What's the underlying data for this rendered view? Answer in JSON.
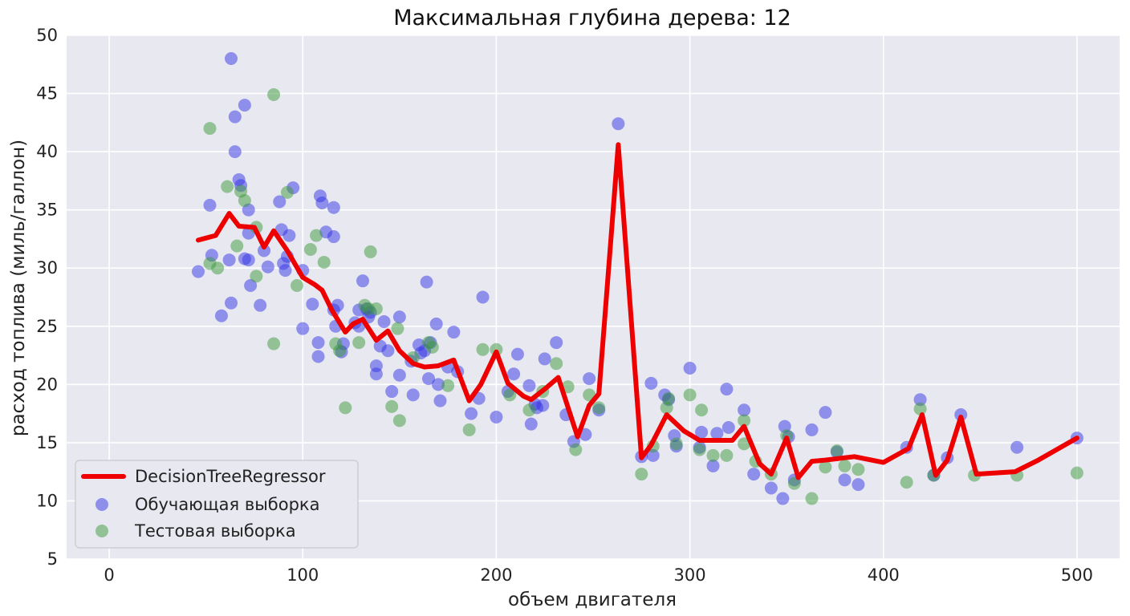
{
  "chart_data": {
    "type": "scatter",
    "title": "Максимальная глубина дерева: 12",
    "xlabel": "объем двигателя",
    "ylabel": "расход топлива (миль/галлон)",
    "xlim": [
      -22,
      522
    ],
    "ylim": [
      5,
      50
    ],
    "xticks": [
      0,
      100,
      200,
      300,
      400,
      500
    ],
    "yticks": [
      5,
      10,
      15,
      20,
      25,
      30,
      35,
      40,
      45,
      50
    ],
    "grid": true,
    "legend_position": "lower-left",
    "colors": {
      "background": "#e8e8f0",
      "grid": "#ffffff",
      "line": "#ee0000",
      "train": "#3333e6",
      "test": "#3c9a3c"
    },
    "series": [
      {
        "name": "DecisionTreeRegressor",
        "kind": "line",
        "points": [
          [
            46,
            32.4
          ],
          [
            55,
            32.8
          ],
          [
            62,
            34.7
          ],
          [
            67,
            33.6
          ],
          [
            75,
            33.5
          ],
          [
            80,
            31.8
          ],
          [
            85,
            33.2
          ],
          [
            92,
            31.5
          ],
          [
            100,
            29.2
          ],
          [
            106,
            28.6
          ],
          [
            110,
            28.1
          ],
          [
            115,
            26.4
          ],
          [
            122,
            24.5
          ],
          [
            126,
            25.2
          ],
          [
            131,
            25.6
          ],
          [
            138,
            23.8
          ],
          [
            144,
            24.6
          ],
          [
            150,
            22.9
          ],
          [
            157,
            21.8
          ],
          [
            163,
            21.5
          ],
          [
            170,
            21.6
          ],
          [
            178,
            22.1
          ],
          [
            186,
            18.6
          ],
          [
            192,
            20.0
          ],
          [
            200,
            22.8
          ],
          [
            206,
            20.1
          ],
          [
            214,
            19.0
          ],
          [
            218,
            18.7
          ],
          [
            225,
            19.6
          ],
          [
            232,
            20.6
          ],
          [
            242,
            15.5
          ],
          [
            248,
            18.2
          ],
          [
            253,
            19.2
          ],
          [
            263,
            40.6
          ],
          [
            275,
            13.7
          ],
          [
            280,
            14.8
          ],
          [
            288,
            17.4
          ],
          [
            297,
            16.0
          ],
          [
            305,
            15.2
          ],
          [
            318,
            15.2
          ],
          [
            322,
            15.2
          ],
          [
            328,
            16.4
          ],
          [
            336,
            13.2
          ],
          [
            342,
            12.3
          ],
          [
            350,
            15.4
          ],
          [
            356,
            12.0
          ],
          [
            363,
            13.4
          ],
          [
            370,
            13.5
          ],
          [
            385,
            13.8
          ],
          [
            400,
            13.3
          ],
          [
            413,
            14.5
          ],
          [
            420,
            17.4
          ],
          [
            427,
            12.2
          ],
          [
            433,
            13.5
          ],
          [
            440,
            17.2
          ],
          [
            448,
            12.3
          ],
          [
            468,
            12.5
          ],
          [
            480,
            13.5
          ],
          [
            500,
            15.4
          ]
        ]
      },
      {
        "name": "Обучающая выборка",
        "kind": "scatter",
        "points": [
          [
            46,
            29.7
          ],
          [
            52,
            35.4
          ],
          [
            53,
            31.1
          ],
          [
            58,
            25.9
          ],
          [
            62,
            30.7
          ],
          [
            63,
            27.0
          ],
          [
            63,
            48.0
          ],
          [
            65,
            43.0
          ],
          [
            65,
            40.0
          ],
          [
            67,
            37.6
          ],
          [
            68,
            37.1
          ],
          [
            70,
            30.8
          ],
          [
            70,
            44.0
          ],
          [
            72,
            33.0
          ],
          [
            72,
            35.0
          ],
          [
            72,
            30.7
          ],
          [
            73,
            28.5
          ],
          [
            78,
            26.8
          ],
          [
            80,
            31.5
          ],
          [
            82,
            30.1
          ],
          [
            88,
            35.7
          ],
          [
            89,
            33.3
          ],
          [
            90,
            30.4
          ],
          [
            91,
            29.8
          ],
          [
            92,
            31.0
          ],
          [
            93,
            32.8
          ],
          [
            95,
            36.9
          ],
          [
            100,
            24.8
          ],
          [
            100,
            29.8
          ],
          [
            105,
            26.9
          ],
          [
            108,
            22.4
          ],
          [
            108,
            23.6
          ],
          [
            109,
            36.2
          ],
          [
            110,
            35.6
          ],
          [
            112,
            33.1
          ],
          [
            116,
            35.2
          ],
          [
            116,
            32.7
          ],
          [
            116,
            26.4
          ],
          [
            117,
            25.0
          ],
          [
            118,
            26.8
          ],
          [
            120,
            22.8
          ],
          [
            121,
            23.5
          ],
          [
            127,
            25.3
          ],
          [
            129,
            25.0
          ],
          [
            129,
            26.4
          ],
          [
            131,
            28.9
          ],
          [
            133,
            26.5
          ],
          [
            134,
            25.8
          ],
          [
            135,
            26.2
          ],
          [
            138,
            21.6
          ],
          [
            138,
            20.9
          ],
          [
            140,
            23.3
          ],
          [
            142,
            25.4
          ],
          [
            144,
            22.9
          ],
          [
            146,
            19.4
          ],
          [
            150,
            25.8
          ],
          [
            150,
            20.8
          ],
          [
            156,
            22.0
          ],
          [
            157,
            19.1
          ],
          [
            160,
            23.4
          ],
          [
            161,
            22.7
          ],
          [
            163,
            22.9
          ],
          [
            164,
            28.8
          ],
          [
            165,
            20.5
          ],
          [
            166,
            23.6
          ],
          [
            169,
            25.2
          ],
          [
            170,
            20.0
          ],
          [
            171,
            18.6
          ],
          [
            175,
            21.5
          ],
          [
            178,
            24.5
          ],
          [
            180,
            21.1
          ],
          [
            187,
            17.5
          ],
          [
            191,
            18.8
          ],
          [
            193,
            27.5
          ],
          [
            200,
            17.2
          ],
          [
            206,
            19.4
          ],
          [
            209,
            20.9
          ],
          [
            211,
            22.6
          ],
          [
            217,
            19.9
          ],
          [
            218,
            16.6
          ],
          [
            220,
            18.3
          ],
          [
            221,
            18.0
          ],
          [
            224,
            18.2
          ],
          [
            225,
            22.2
          ],
          [
            231,
            23.6
          ],
          [
            236,
            17.4
          ],
          [
            240,
            15.1
          ],
          [
            246,
            15.7
          ],
          [
            248,
            20.5
          ],
          [
            253,
            17.8
          ],
          [
            263,
            42.4
          ],
          [
            275,
            13.8
          ],
          [
            280,
            20.1
          ],
          [
            281,
            13.9
          ],
          [
            287,
            19.1
          ],
          [
            289,
            18.7
          ],
          [
            292,
            15.6
          ],
          [
            293,
            14.7
          ],
          [
            300,
            21.4
          ],
          [
            305,
            14.6
          ],
          [
            306,
            15.9
          ],
          [
            312,
            13.0
          ],
          [
            314,
            15.8
          ],
          [
            319,
            19.6
          ],
          [
            320,
            16.3
          ],
          [
            328,
            17.8
          ],
          [
            333,
            12.3
          ],
          [
            342,
            11.1
          ],
          [
            348,
            10.2
          ],
          [
            349,
            16.4
          ],
          [
            351,
            15.5
          ],
          [
            354,
            11.8
          ],
          [
            363,
            16.1
          ],
          [
            370,
            17.6
          ],
          [
            376,
            14.2
          ],
          [
            380,
            11.8
          ],
          [
            387,
            11.4
          ],
          [
            412,
            14.6
          ],
          [
            419,
            18.7
          ],
          [
            426,
            12.2
          ],
          [
            433,
            13.7
          ],
          [
            440,
            17.4
          ],
          [
            469,
            14.6
          ],
          [
            500,
            15.4
          ]
        ]
      },
      {
        "name": "Тестовая выборка",
        "kind": "scatter",
        "points": [
          [
            52,
            42.0
          ],
          [
            52,
            30.4
          ],
          [
            56,
            30.0
          ],
          [
            61,
            37.0
          ],
          [
            66,
            31.9
          ],
          [
            68,
            36.6
          ],
          [
            70,
            35.8
          ],
          [
            76,
            33.5
          ],
          [
            76,
            29.3
          ],
          [
            85,
            44.9
          ],
          [
            85,
            23.5
          ],
          [
            92,
            36.5
          ],
          [
            97,
            28.5
          ],
          [
            104,
            31.6
          ],
          [
            107,
            32.8
          ],
          [
            111,
            30.5
          ],
          [
            117,
            23.5
          ],
          [
            119,
            22.9
          ],
          [
            122,
            18.0
          ],
          [
            129,
            23.6
          ],
          [
            132,
            26.8
          ],
          [
            134,
            26.5
          ],
          [
            135,
            31.4
          ],
          [
            138,
            26.5
          ],
          [
            146,
            18.1
          ],
          [
            149,
            24.8
          ],
          [
            150,
            16.9
          ],
          [
            157,
            22.3
          ],
          [
            165,
            23.6
          ],
          [
            167,
            23.2
          ],
          [
            175,
            19.9
          ],
          [
            186,
            16.1
          ],
          [
            193,
            23.0
          ],
          [
            200,
            23.0
          ],
          [
            207,
            19.1
          ],
          [
            217,
            17.8
          ],
          [
            224,
            19.4
          ],
          [
            231,
            21.8
          ],
          [
            237,
            19.8
          ],
          [
            241,
            14.4
          ],
          [
            248,
            19.1
          ],
          [
            253,
            18.0
          ],
          [
            275,
            12.3
          ],
          [
            281,
            14.7
          ],
          [
            288,
            18.0
          ],
          [
            289,
            18.8
          ],
          [
            293,
            14.9
          ],
          [
            300,
            19.1
          ],
          [
            305,
            14.4
          ],
          [
            306,
            17.8
          ],
          [
            312,
            13.9
          ],
          [
            319,
            13.9
          ],
          [
            328,
            16.9
          ],
          [
            328,
            14.9
          ],
          [
            334,
            13.4
          ],
          [
            342,
            12.3
          ],
          [
            350,
            15.6
          ],
          [
            354,
            11.5
          ],
          [
            363,
            10.2
          ],
          [
            370,
            12.9
          ],
          [
            376,
            14.3
          ],
          [
            380,
            13.0
          ],
          [
            387,
            12.7
          ],
          [
            412,
            11.6
          ],
          [
            419,
            17.9
          ],
          [
            426,
            12.2
          ],
          [
            447,
            12.2
          ],
          [
            469,
            12.2
          ],
          [
            500,
            12.4
          ]
        ]
      }
    ]
  }
}
